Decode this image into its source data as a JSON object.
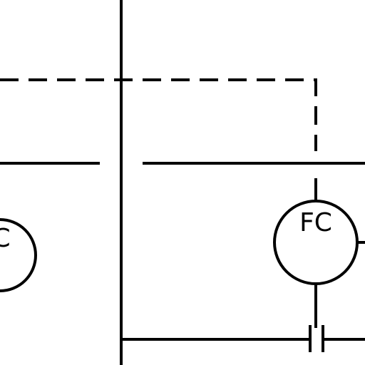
{
  "diagram": {
    "instruments": [
      {
        "label": "C"
      },
      {
        "label": "FC"
      }
    ]
  },
  "colors": {
    "line": "#000000",
    "background": "#ffffff"
  }
}
